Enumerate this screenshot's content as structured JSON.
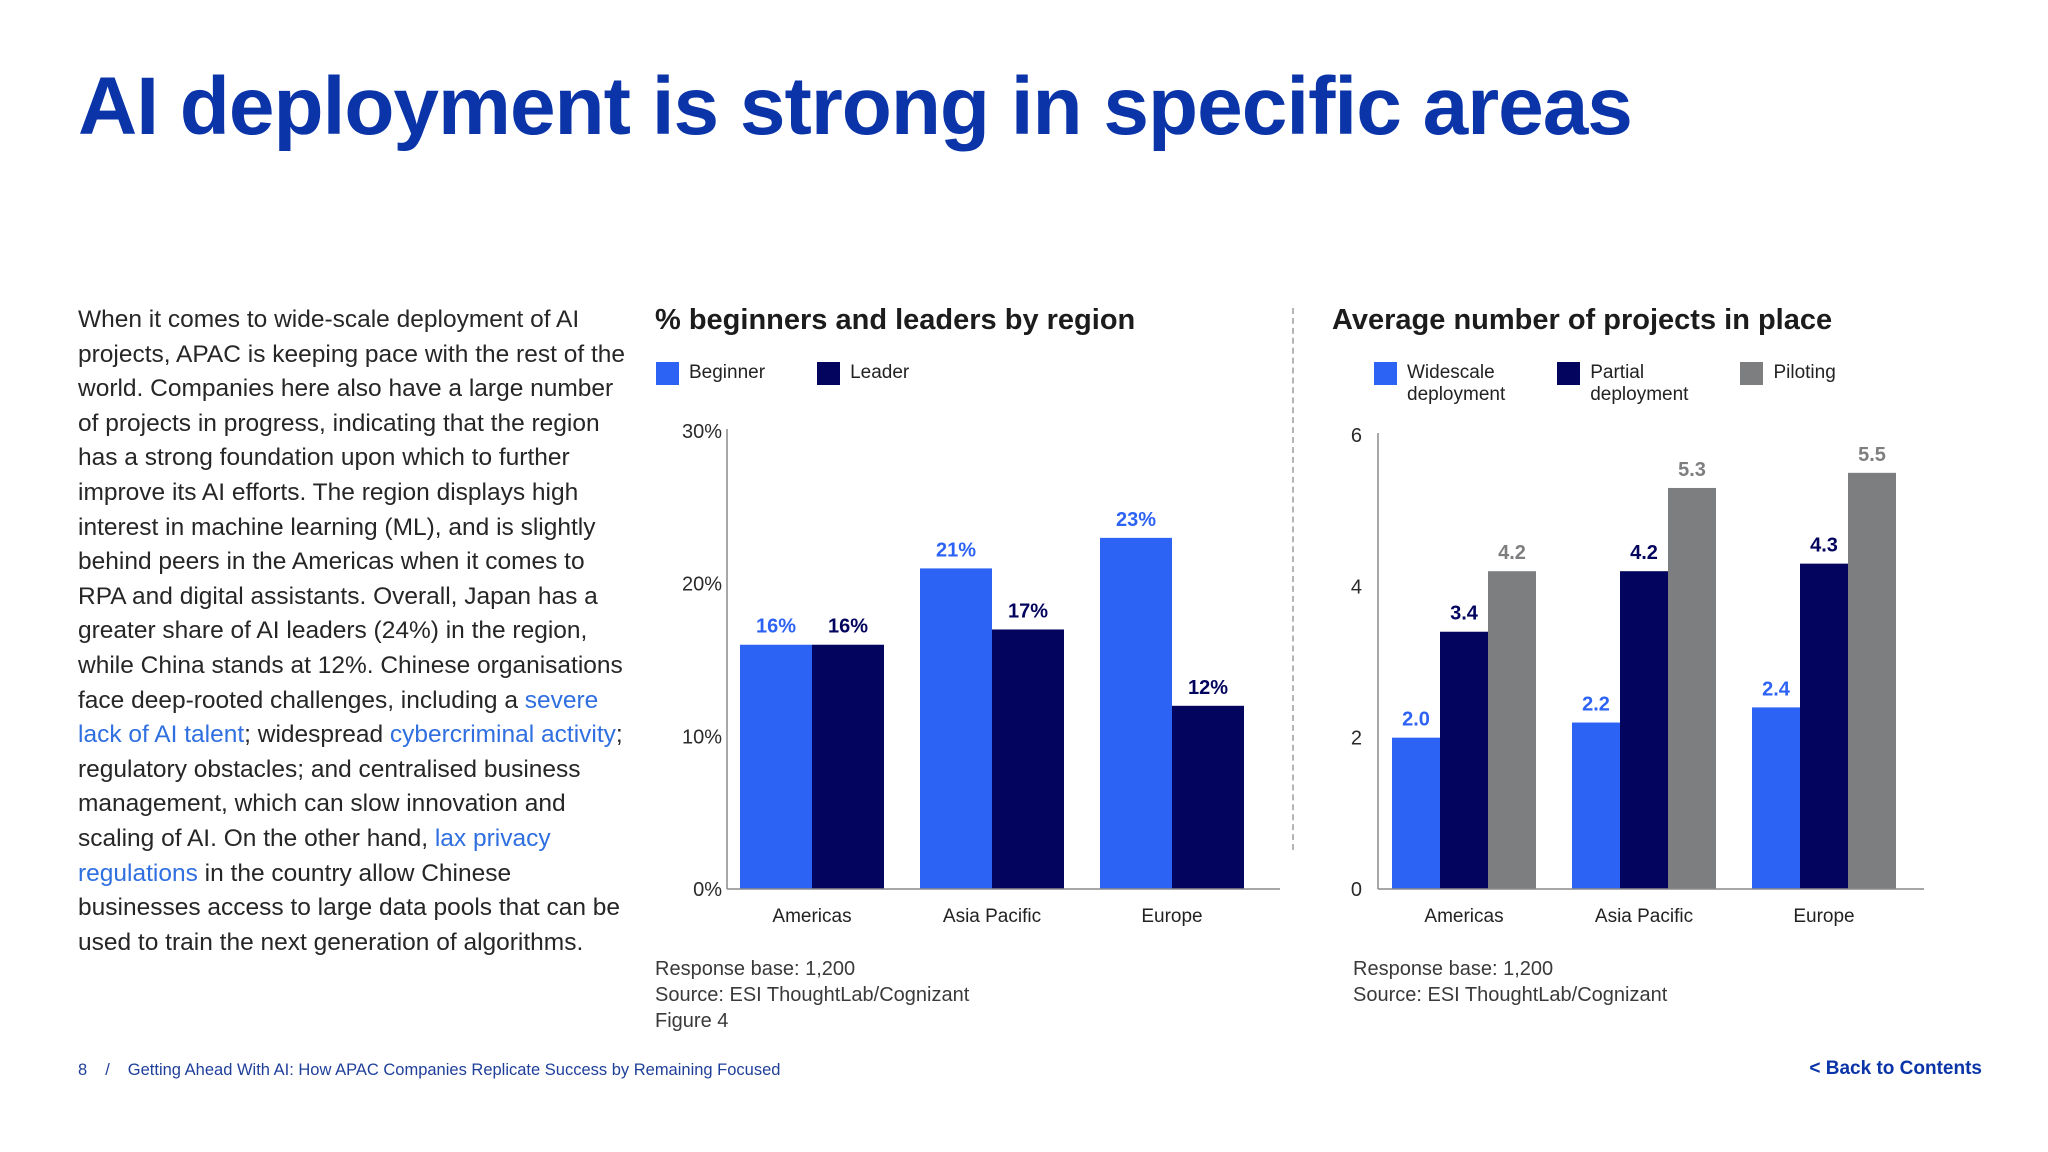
{
  "page": {
    "title": "AI deployment is strong in specific areas",
    "body_segments": [
      {
        "text": "When it comes to wide-scale deployment of AI projects, APAC is keeping pace with the rest of the world. Companies here also have a large number of projects in progress, indicating that the region has a strong foundation upon which to further improve its AI efforts. The region displays high interest in machine learning (ML), and is slightly behind peers in the Americas when it comes to RPA and digital assistants. Overall, Japan has a greater share of AI leaders (24%) in the region, while China stands at 12%. Chinese organisations face deep-rooted challenges, including a ",
        "link": false
      },
      {
        "text": "severe lack of AI talent",
        "link": true
      },
      {
        "text": "; widespread ",
        "link": false
      },
      {
        "text": "cybercriminal activity",
        "link": true
      },
      {
        "text": "; regulatory obstacles; and centralised business management, which can slow innovation and scaling of AI. On the other hand, ",
        "link": false
      },
      {
        "text": "lax privacy regulations",
        "link": true
      },
      {
        "text": " in the country allow Chinese businesses access to large data pools that can be used to train the next generation of algorithms.",
        "link": false
      }
    ]
  },
  "chart_data": [
    {
      "type": "bar",
      "title": "% beginners and leaders by region",
      "categories": [
        "Americas",
        "Asia Pacific",
        "Europe"
      ],
      "series": [
        {
          "name": "Beginner",
          "values": [
            16,
            21,
            23
          ],
          "color": "#2d63f5",
          "label_color": "#2d63f5"
        },
        {
          "name": "Leader",
          "values": [
            16,
            17,
            12
          ],
          "color": "#03045e",
          "label_color": "#03045e"
        }
      ],
      "data_labels": [
        [
          "16%",
          "21%",
          "23%"
        ],
        [
          "16%",
          "17%",
          "12%"
        ]
      ],
      "ylim": [
        0,
        30
      ],
      "yticks": [
        0,
        10,
        20,
        30
      ],
      "ytick_labels": [
        "0%",
        "10%",
        "20%",
        "30%"
      ],
      "legend": "top-left",
      "grid": false,
      "notes": [
        "Response base: 1,200",
        "Source: ESI ThoughtLab/Cognizant",
        "Figure 4"
      ]
    },
    {
      "type": "bar",
      "title": "Average number of projects in place",
      "categories": [
        "Americas",
        "Asia Pacific",
        "Europe"
      ],
      "series": [
        {
          "name": "Widescale\ndeployment",
          "values": [
            2.0,
            2.2,
            2.4
          ],
          "color": "#2d63f5",
          "label_color": "#2d63f5"
        },
        {
          "name": "Partial\ndeployment",
          "values": [
            3.4,
            4.2,
            4.3
          ],
          "color": "#03045e",
          "label_color": "#03045e"
        },
        {
          "name": "Piloting",
          "values": [
            4.2,
            5.3,
            5.5
          ],
          "color": "#7d7e80",
          "label_color": "#7d7e80"
        }
      ],
      "data_labels": [
        [
          "2.0",
          "2.2",
          "2.4"
        ],
        [
          "3.4",
          "4.2",
          "4.3"
        ],
        [
          "4.2",
          "5.3",
          "5.5"
        ]
      ],
      "ylim": [
        0,
        6
      ],
      "yticks": [
        0,
        2,
        4,
        6
      ],
      "ytick_labels": [
        "0",
        "2",
        "4",
        "6"
      ],
      "legend": "top-left",
      "grid": false,
      "notes": [
        "Response base: 1,200",
        "Source: ESI ThoughtLab/Cognizant"
      ]
    }
  ],
  "footer": {
    "page_number": "8",
    "separator": "/",
    "doc_title": "Getting Ahead With AI: How APAC Companies Replicate Success by Remaining Focused",
    "back_link": "<  Back to Contents"
  }
}
